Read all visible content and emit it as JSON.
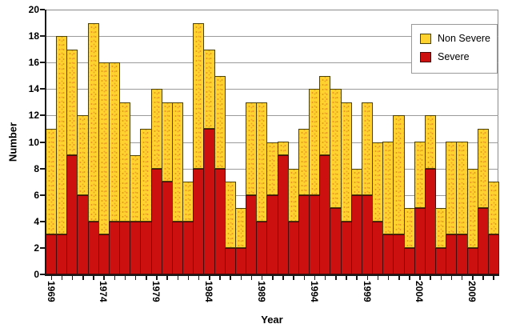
{
  "figure": {
    "ylabel": "Number",
    "xlabel": "Year",
    "legend": [
      {
        "label": "Non Severe",
        "color": "#FFD230",
        "border": "#4d4208"
      },
      {
        "label": "Severe",
        "color": "#CC1010",
        "border": "#4a0a0a"
      }
    ]
  },
  "chart_data": {
    "type": "bar",
    "stacked": true,
    "title": "",
    "xlabel": "Year",
    "ylabel": "Number",
    "ylim": [
      0,
      20
    ],
    "ytick_step": 2,
    "xtick_label_every": 5,
    "grid": "horizontal",
    "legend_position": "top-right",
    "categories": [
      1969,
      1970,
      1971,
      1972,
      1973,
      1974,
      1975,
      1976,
      1977,
      1978,
      1979,
      1980,
      1981,
      1982,
      1983,
      1984,
      1985,
      1986,
      1987,
      1988,
      1989,
      1990,
      1991,
      1992,
      1993,
      1994,
      1995,
      1996,
      1997,
      1998,
      1999,
      2000,
      2001,
      2002,
      2003,
      2004,
      2005,
      2006,
      2007,
      2008,
      2009,
      2010,
      2011
    ],
    "series": [
      {
        "name": "Severe",
        "color": "#CC1010",
        "values": [
          3,
          3,
          9,
          6,
          4,
          3,
          4,
          4,
          4,
          4,
          8,
          7,
          4,
          4,
          8,
          11,
          8,
          2,
          2,
          6,
          4,
          6,
          9,
          4,
          6,
          6,
          9,
          5,
          4,
          6,
          6,
          4,
          3,
          3,
          2,
          5,
          8,
          2,
          3,
          3,
          2,
          5,
          3
        ]
      },
      {
        "name": "Non Severe",
        "color": "#FFD230",
        "values": [
          8,
          15,
          8,
          6,
          15,
          13,
          12,
          9,
          5,
          7,
          6,
          6,
          9,
          3,
          11,
          6,
          7,
          5,
          3,
          7,
          9,
          4,
          1,
          4,
          5,
          8,
          6,
          9,
          9,
          2,
          7,
          6,
          7,
          9,
          3,
          5,
          4,
          3,
          7,
          7,
          6,
          6,
          4
        ]
      }
    ]
  }
}
